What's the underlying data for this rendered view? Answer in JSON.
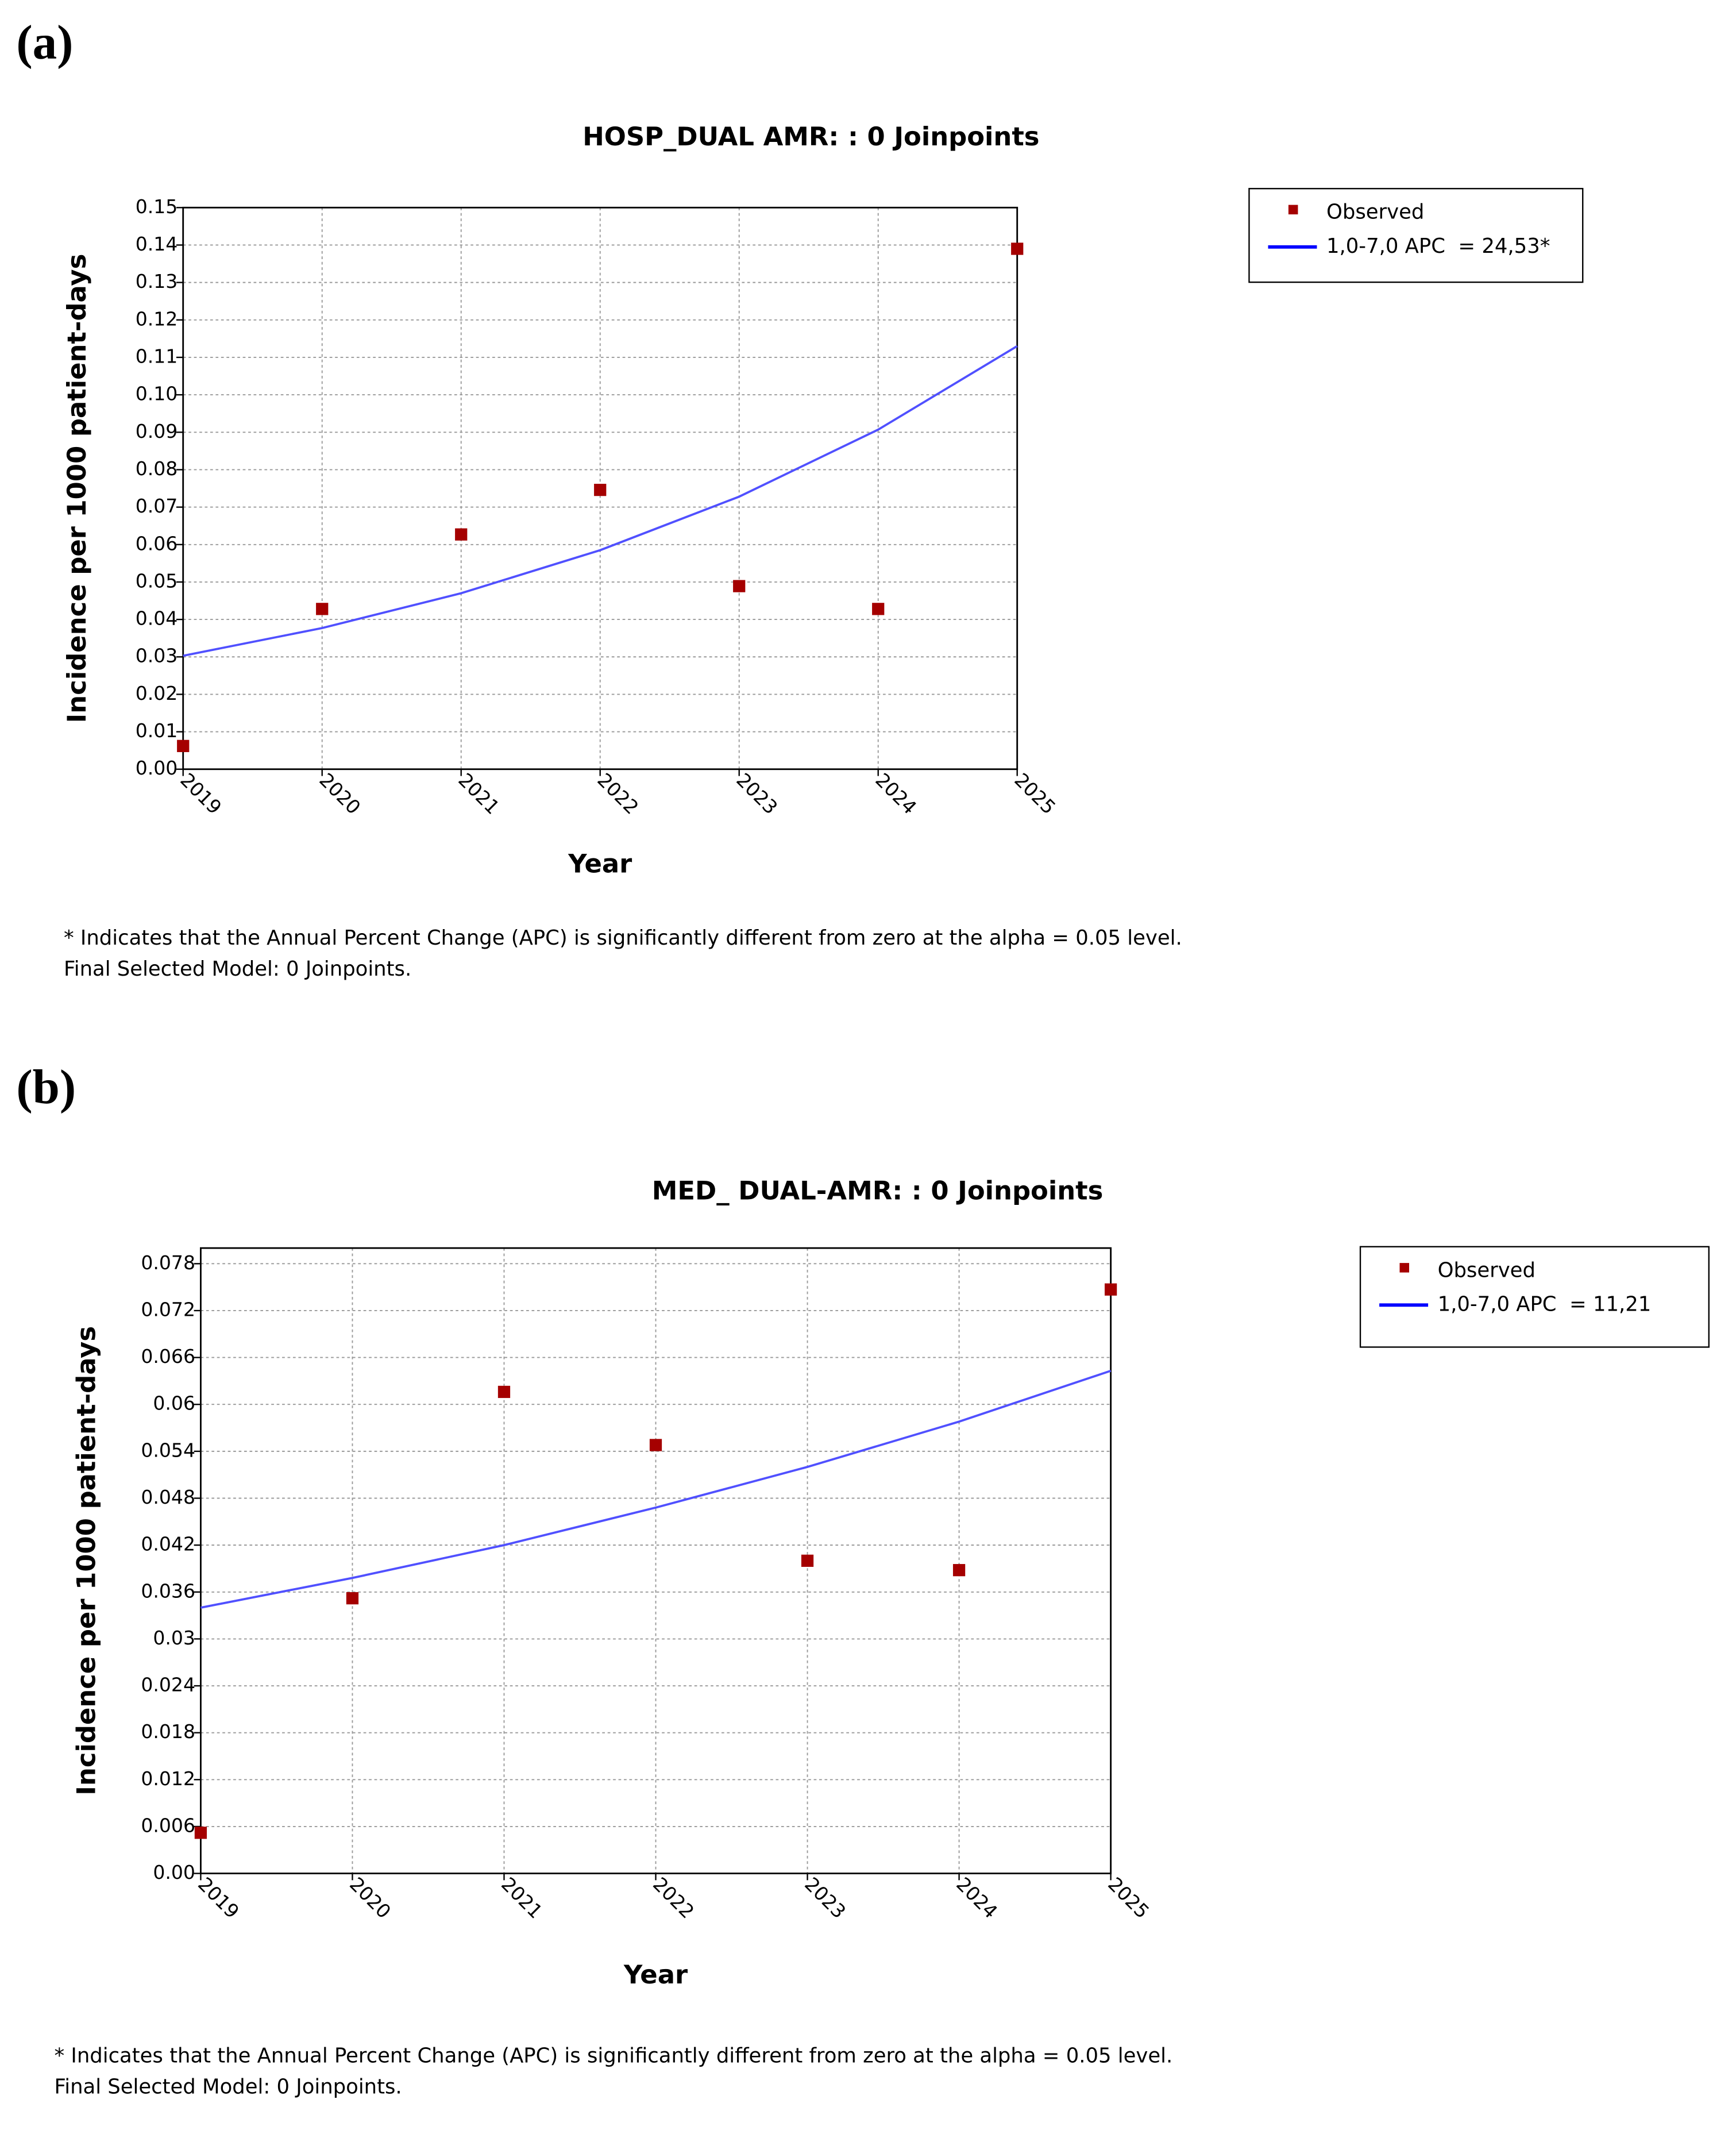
{
  "chart_data": [
    {
      "type": "line",
      "panel_label": "(a)",
      "title": "HOSP_DUAL AMR: : 0 Joinpoints",
      "x_label": "Year",
      "y_label": "Incidence per 1000 patient-days",
      "x": [
        2019,
        2020,
        2021,
        2022,
        2023,
        2024,
        2025
      ],
      "xlim": [
        2019,
        2025
      ],
      "xticks": [
        2019,
        2020,
        2021,
        2022,
        2023,
        2024,
        2025
      ],
      "ylim": [
        0,
        0.15
      ],
      "yticks": [
        {
          "value": 0,
          "label": "0.00"
        },
        0.01,
        0.02,
        0.03,
        0.04,
        0.05,
        0.06,
        0.07,
        0.08,
        0.09,
        {
          "value": 0.1,
          "label": "0.10"
        },
        0.11,
        0.12,
        0.13,
        0.14,
        0.15
      ],
      "grid": true,
      "legend": "right",
      "series": [
        {
          "name": "Observed",
          "style": "markers",
          "color": "#a50000",
          "values": [
            0.0062,
            0.0428,
            0.0627,
            0.0746,
            0.0489,
            0.0428,
            0.139
          ]
        },
        {
          "name": "1,0-7,0 APC  = 24,53*",
          "style": "line",
          "color": "#5050ff",
          "values": [
            0.0303,
            0.0377,
            0.047,
            0.0585,
            0.0728,
            0.0907,
            0.113
          ]
        }
      ],
      "footnotes": [
        "* Indicates that the Annual Percent Change (APC) is significantly different from zero at the alpha = 0.05 level.",
        "Final Selected Model: 0 Joinpoints."
      ]
    },
    {
      "type": "line",
      "panel_label": "(b)",
      "title": "MED_ DUAL-AMR: : 0 Joinpoints",
      "x_label": "Year",
      "y_label": "Incidence per 1000 patient-days",
      "x": [
        2019,
        2020,
        2021,
        2022,
        2023,
        2024,
        2025
      ],
      "xlim": [
        2019,
        2025
      ],
      "xticks": [
        2019,
        2020,
        2021,
        2022,
        2023,
        2024,
        2025
      ],
      "ylim": [
        0,
        0.08
      ],
      "yticks": [
        {
          "value": 0,
          "label": "0.00"
        },
        0.006,
        0.012,
        0.018,
        0.024,
        0.03,
        0.036,
        0.042,
        0.048,
        0.054,
        0.06,
        0.066,
        0.072,
        0.078
      ],
      "grid": true,
      "legend": "right",
      "series": [
        {
          "name": "Observed",
          "style": "markers",
          "color": "#a50000",
          "values": [
            0.0052,
            0.0352,
            0.0616,
            0.0548,
            0.04,
            0.0388,
            0.0747
          ]
        },
        {
          "name": "1,0-7,0 APC  = 11,21",
          "style": "line",
          "color": "#5050ff",
          "values": [
            0.034,
            0.0378,
            0.042,
            0.0468,
            0.052,
            0.0578,
            0.0643
          ]
        }
      ],
      "footnotes": [
        "* Indicates that the Annual Percent Change (APC) is significantly different from zero at the alpha = 0.05 level.",
        "Final Selected Model: 0 Joinpoints."
      ]
    }
  ]
}
